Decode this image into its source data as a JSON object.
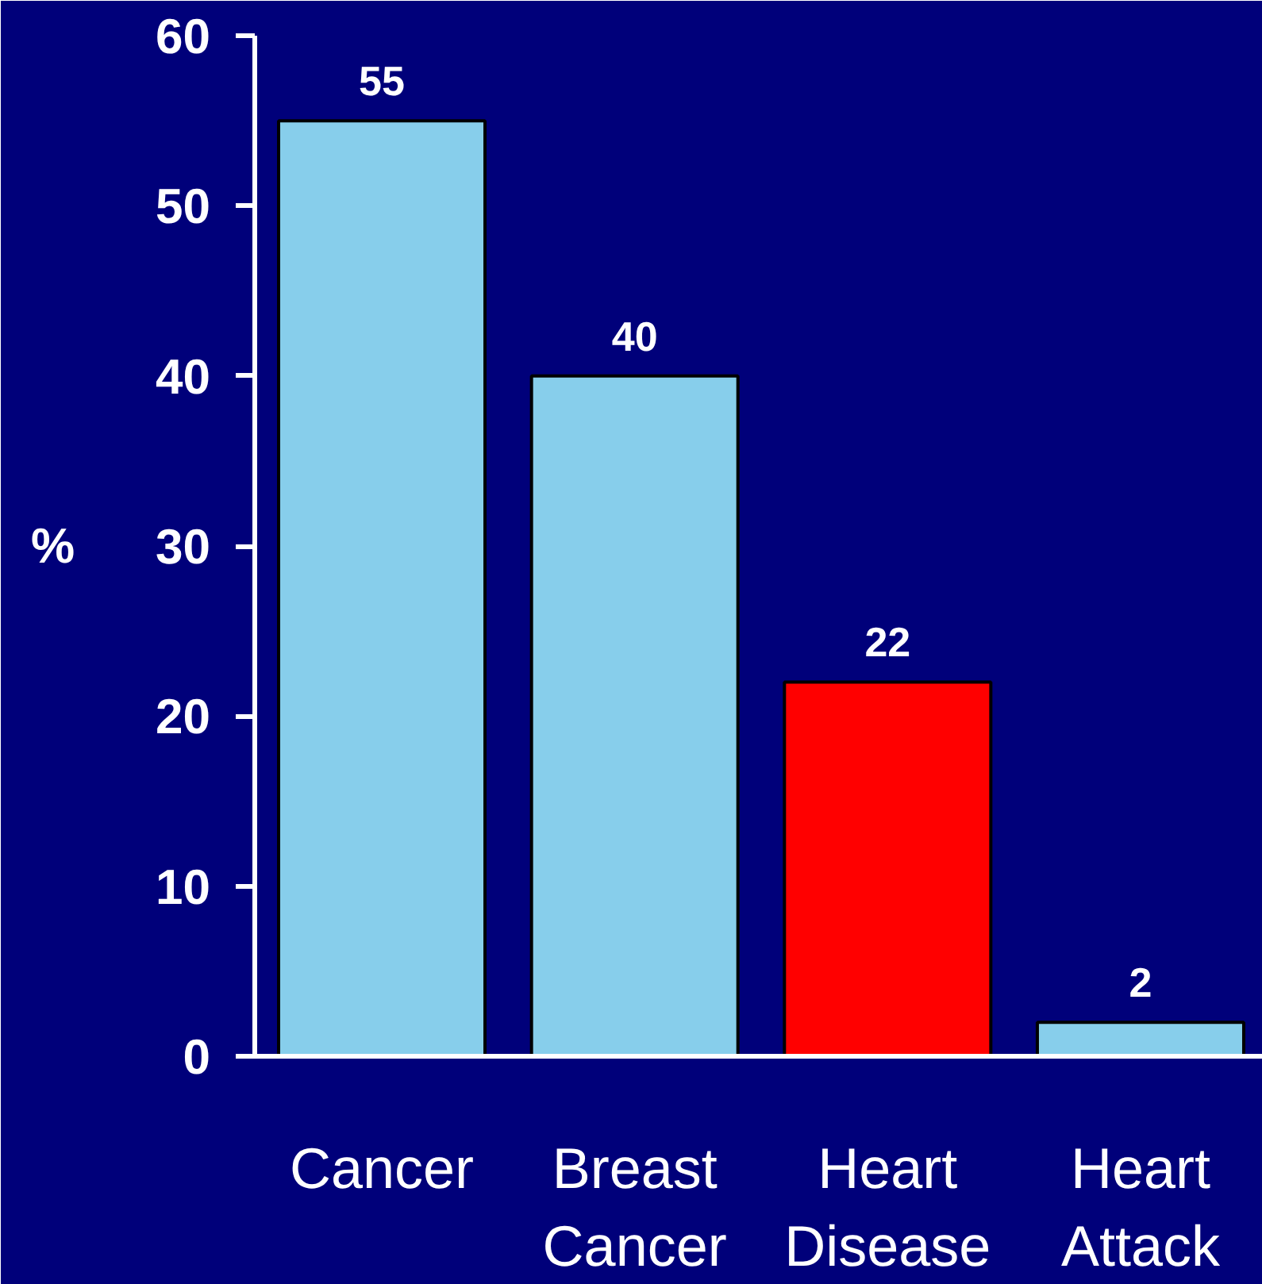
{
  "chart_data": {
    "type": "bar",
    "ylabel": "%",
    "categories": [
      "Cancer",
      "Breast Cancer",
      "Heart Disease",
      "Heart Attack"
    ],
    "values": [
      55,
      40,
      22,
      2
    ],
    "colors": [
      "#87ceeb",
      "#87ceeb",
      "#ff0000",
      "#87ceeb"
    ],
    "ylim": [
      0,
      60
    ],
    "yticks": [
      0,
      10,
      20,
      30,
      40,
      50,
      60
    ],
    "data_labels": true
  }
}
